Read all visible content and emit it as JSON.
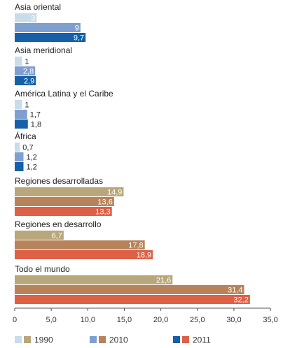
{
  "chart_data": {
    "type": "bar",
    "orientation": "horizontal",
    "xlim": [
      0,
      35
    ],
    "x_ticks": [
      "0",
      "5,0",
      "10,0",
      "15,0",
      "20,0",
      "25,0",
      "30,0",
      "35,0"
    ],
    "grid": false,
    "legend": {
      "placement": "bottom",
      "entries": [
        {
          "label": "1990",
          "colors": [
            "#c9dcec",
            "#b8a77a"
          ]
        },
        {
          "label": "2010",
          "colors": [
            "#7f9fd0",
            "#b8835a"
          ]
        },
        {
          "label": "2011",
          "colors": [
            "#1560a8",
            "#dd6047"
          ]
        }
      ]
    },
    "series_names": [
      "1990",
      "2010",
      "2011"
    ],
    "groups": [
      {
        "name": "Asia oriental",
        "palette": "blue",
        "values": [
          3,
          9,
          9.7
        ],
        "labels": [
          "3",
          "9",
          "9,7"
        ]
      },
      {
        "name": "Asia meridional",
        "palette": "blue",
        "values": [
          1,
          2.8,
          2.9
        ],
        "labels": [
          "1",
          "2,8",
          "2,9"
        ]
      },
      {
        "name": "América Latina y el Caribe",
        "palette": "blue",
        "values": [
          1,
          1.7,
          1.8
        ],
        "labels": [
          "1",
          "1,7",
          "1,8"
        ]
      },
      {
        "name": "África",
        "palette": "blue",
        "values": [
          0.7,
          1.2,
          1.2
        ],
        "labels": [
          "0,7",
          "1,2",
          "1,2"
        ]
      },
      {
        "name": "Regiones desarrolladas",
        "palette": "warm",
        "values": [
          14.9,
          13.6,
          13.3
        ],
        "labels": [
          "14,9",
          "13,6",
          "13,3"
        ]
      },
      {
        "name": "Regiones en desarrollo",
        "palette": "warm",
        "values": [
          6.7,
          17.8,
          18.9
        ],
        "labels": [
          "6,7",
          "17,8",
          "18,9"
        ]
      },
      {
        "name": "Todo el mundo",
        "palette": "warm",
        "values": [
          21.6,
          31.4,
          32.2
        ],
        "labels": [
          "21,6",
          "31,4",
          "32,2"
        ]
      }
    ],
    "palettes": {
      "blue": [
        "#c9dcec",
        "#7f9fd0",
        "#1560a8"
      ],
      "warm": [
        "#b8a77a",
        "#b8835a",
        "#dd6047"
      ]
    }
  }
}
